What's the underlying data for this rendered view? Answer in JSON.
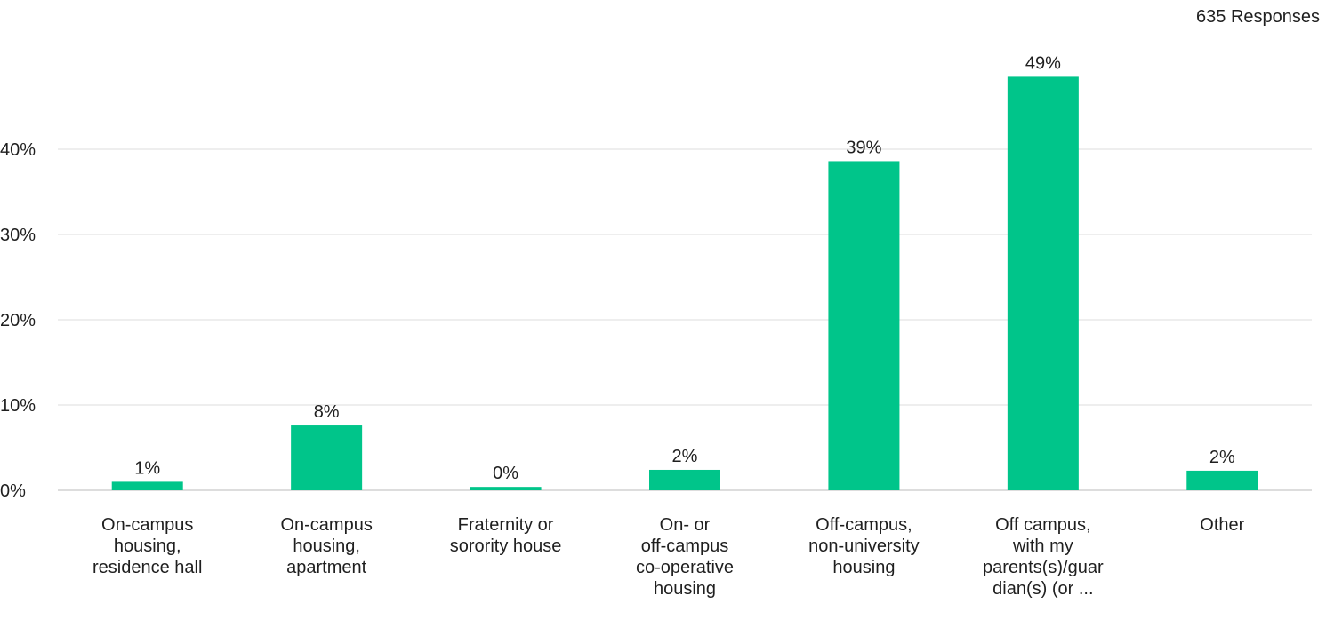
{
  "header": {
    "responses_label": "635 Responses"
  },
  "colors": {
    "bar": "#00C58A",
    "grid": "#dddddd",
    "baseline": "#bbbbbb",
    "text": "#1f1f1f"
  },
  "chart_data": {
    "type": "bar",
    "title": "",
    "xlabel": "",
    "ylabel": "",
    "ylim": [
      0,
      50
    ],
    "yticks": [
      0,
      10,
      20,
      30,
      40
    ],
    "ytick_labels": [
      "0%",
      "10%",
      "20%",
      "30%",
      "40%"
    ],
    "grid": true,
    "categories": [
      "On-campus housing, residence hall",
      "On-campus housing, apartment",
      "Fraternity or sorority house",
      "On- or off-campus co-operative housing",
      "Off-campus, non-university housing",
      "Off campus, with my parents(s)/guardian(s) (or ...",
      "Other"
    ],
    "category_lines": [
      [
        "On-campus",
        "housing,",
        "residence hall"
      ],
      [
        "On-campus",
        "housing,",
        "apartment"
      ],
      [
        "Fraternity or",
        "sorority house"
      ],
      [
        "On- or",
        "off-campus",
        "co-operative",
        "housing"
      ],
      [
        "Off-campus,",
        "non-university",
        "housing"
      ],
      [
        "Off campus,",
        "with my",
        "parents(s)/guar",
        "dian(s) (or ..."
      ],
      [
        "Other"
      ]
    ],
    "values": [
      1.0,
      7.6,
      0.4,
      2.4,
      38.6,
      48.5,
      2.3
    ],
    "data_labels": [
      "1%",
      "8%",
      "0%",
      "2%",
      "39%",
      "49%",
      "2%"
    ]
  }
}
